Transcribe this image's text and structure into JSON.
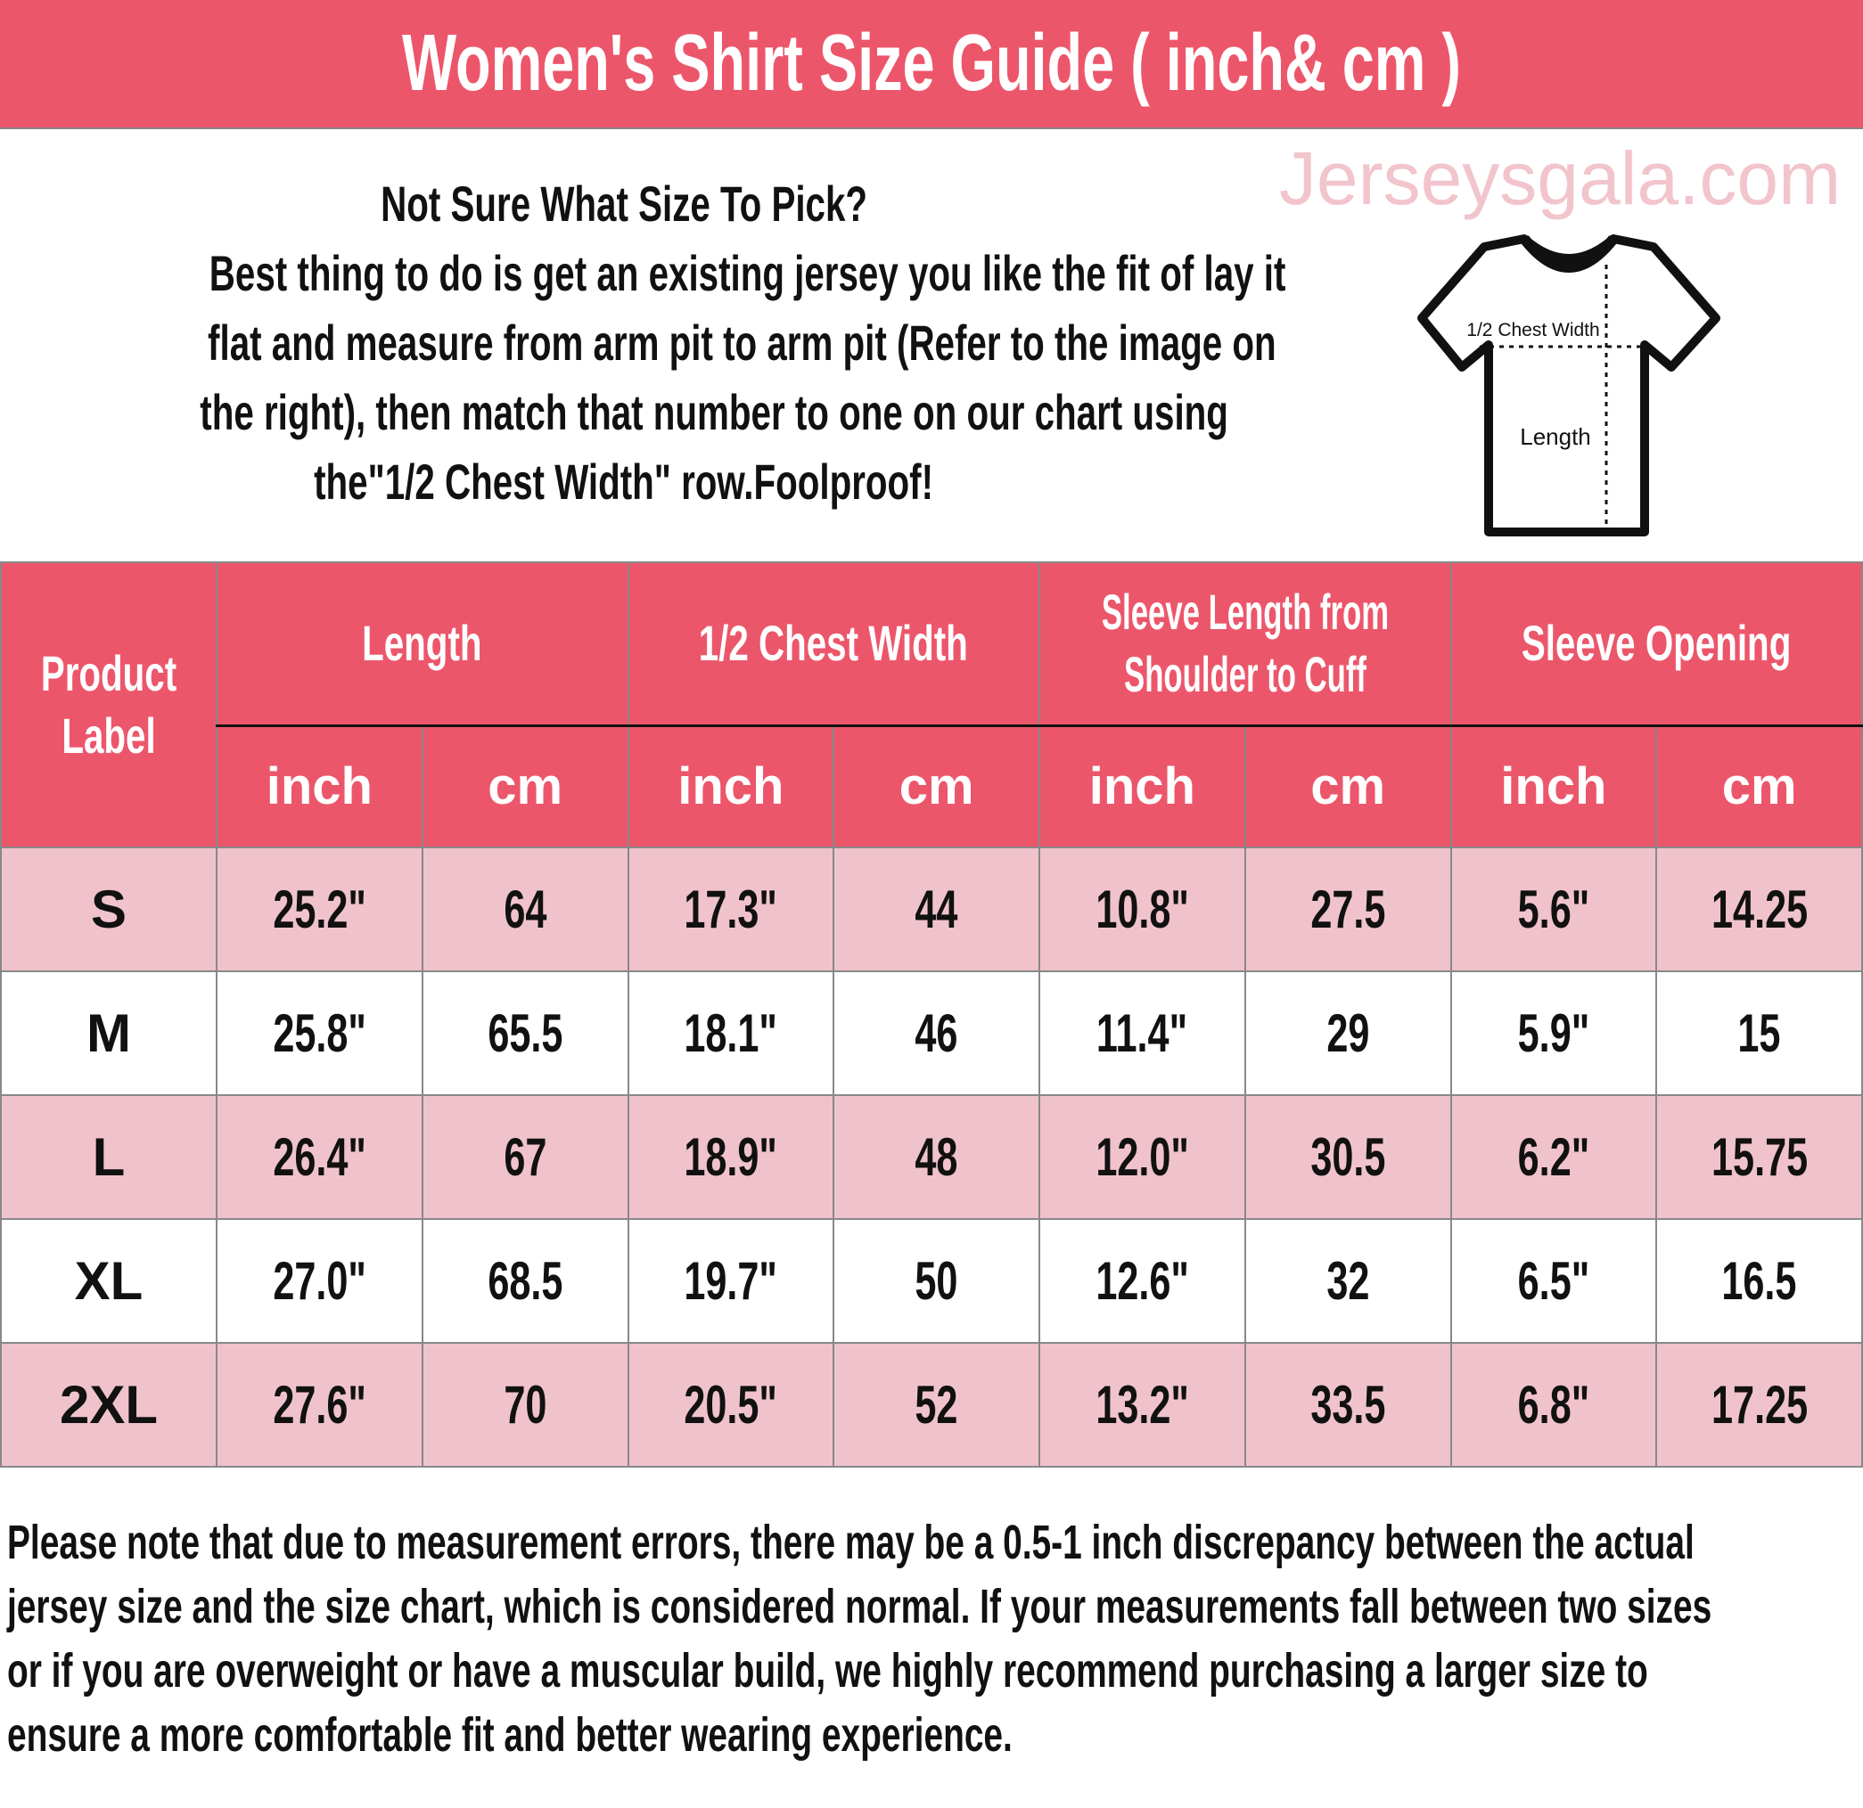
{
  "title": "Women's Shirt Size Guide ( inch& cm )",
  "intro": {
    "lines": [
      "Not Sure What Size To Pick?",
      "Best thing to do is get an existing jersey you like the fit of lay it",
      "flat and measure from arm pit to arm pit (Refer to the image on",
      "the right), then match that number to one on our chart using",
      "the\"1/2 Chest Width\" row.Foolproof!"
    ]
  },
  "diagram": {
    "chest_label": "1/2 Chest Width",
    "length_label": "Length",
    "icon": "t-shirt-outline-icon"
  },
  "table": {
    "label_header": "Product Label",
    "groups": [
      "Length",
      "1/2 Chest Width",
      "Sleeve Length from Shoulder to Cuff",
      "Sleeve Opening"
    ],
    "units": [
      "inch",
      "cm"
    ],
    "rows": [
      {
        "size": "S",
        "values": [
          "25.2\"",
          "64",
          "17.3\"",
          "44",
          "10.8\"",
          "27.5",
          "5.6\"",
          "14.25"
        ]
      },
      {
        "size": "M",
        "values": [
          "25.8\"",
          "65.5",
          "18.1\"",
          "46",
          "11.4\"",
          "29",
          "5.9\"",
          "15"
        ]
      },
      {
        "size": "L",
        "values": [
          "26.4\"",
          "67",
          "18.9\"",
          "48",
          "12.0\"",
          "30.5",
          "6.2\"",
          "15.75"
        ]
      },
      {
        "size": "XL",
        "values": [
          "27.0\"",
          "68.5",
          "19.7\"",
          "50",
          "12.6\"",
          "32",
          "6.5\"",
          "16.5"
        ]
      },
      {
        "size": "2XL",
        "values": [
          "27.6\"",
          "70",
          "20.5\"",
          "52",
          "13.2\"",
          "33.5",
          "6.8\"",
          "17.25"
        ]
      }
    ]
  },
  "watermark": "Jerseysgala.com",
  "note": {
    "lines": [
      "Please note that due to measurement errors, there may be a 0.5-1 inch discrepancy between the actual",
      "jersey size and the size chart, which is considered normal. If your measurements fall between two sizes",
      "or if you are overweight or have a muscular build, we highly recommend purchasing a larger size to",
      "ensure a more comfortable fit and better wearing experience."
    ]
  },
  "colors": {
    "header": "#EC566B",
    "row_pink": "#F0C3CC",
    "row_white": "#FFFFFF"
  }
}
